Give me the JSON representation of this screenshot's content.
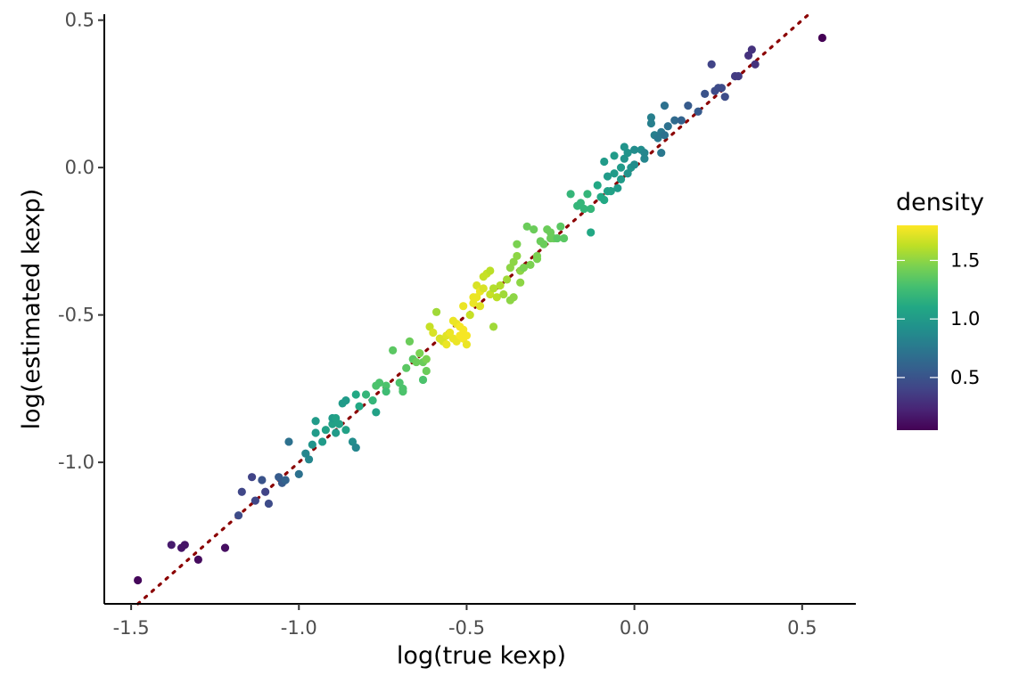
{
  "chart_data": {
    "type": "scatter",
    "title": "",
    "xlabel": "log(true kexp)",
    "ylabel": "log(estimated kexp)",
    "xlim": [
      -1.58,
      0.66
    ],
    "ylim": [
      -1.48,
      0.52
    ],
    "xticks": [
      -1.5,
      -1.0,
      -0.5,
      0.0,
      0.5
    ],
    "xtick_labels": [
      "-1.5",
      "-1.0",
      "-0.5",
      "0.0",
      "0.5"
    ],
    "yticks": [
      -1.0,
      -0.5,
      0.0,
      0.5
    ],
    "ytick_labels": [
      "-1.0",
      "-0.5",
      "0.0",
      "0.5"
    ],
    "grid": false,
    "reference_line": {
      "type": "identity",
      "style": "dotted",
      "color": "#8b0000"
    },
    "legend": {
      "title": "density",
      "type": "colorbar",
      "placement": "right",
      "range": [
        0.05,
        1.8
      ],
      "ticks": [
        0.5,
        1.0,
        1.5
      ],
      "tick_labels": [
        "0.5",
        "1.0",
        "1.5"
      ],
      "colormap": "viridis"
    },
    "points": [
      [
        -1.48,
        -1.4,
        0.08
      ],
      [
        -1.38,
        -1.28,
        0.18
      ],
      [
        -1.35,
        -1.29,
        0.15
      ],
      [
        -1.34,
        -1.28,
        0.15
      ],
      [
        -1.3,
        -1.33,
        0.1
      ],
      [
        -1.22,
        -1.29,
        0.12
      ],
      [
        -1.18,
        -1.18,
        0.45
      ],
      [
        -1.17,
        -1.1,
        0.42
      ],
      [
        -1.14,
        -1.05,
        0.4
      ],
      [
        -1.13,
        -1.13,
        0.42
      ],
      [
        -1.11,
        -1.06,
        0.5
      ],
      [
        -1.1,
        -1.1,
        0.4
      ],
      [
        -1.09,
        -1.14,
        0.45
      ],
      [
        -1.06,
        -1.05,
        0.55
      ],
      [
        -1.05,
        -1.07,
        0.55
      ],
      [
        -1.04,
        -1.06,
        0.6
      ],
      [
        -1.03,
        -0.93,
        0.7
      ],
      [
        -1.0,
        -1.04,
        0.7
      ],
      [
        -0.98,
        -0.97,
        0.85
      ],
      [
        -0.97,
        -0.99,
        0.85
      ],
      [
        -0.96,
        -0.94,
        0.95
      ],
      [
        -0.95,
        -0.9,
        1.0
      ],
      [
        -0.95,
        -0.86,
        1.0
      ],
      [
        -0.93,
        -0.93,
        1.0
      ],
      [
        -0.92,
        -0.89,
        1.05
      ],
      [
        -0.9,
        -0.87,
        1.05
      ],
      [
        -0.9,
        -0.85,
        1.0
      ],
      [
        -0.89,
        -0.9,
        1.0
      ],
      [
        -0.89,
        -0.85,
        1.05
      ],
      [
        -0.88,
        -0.87,
        1.05
      ],
      [
        -0.87,
        -0.8,
        1.0
      ],
      [
        -0.86,
        -0.89,
        1.05
      ],
      [
        -0.86,
        -0.79,
        1.0
      ],
      [
        -0.84,
        -0.93,
        0.9
      ],
      [
        -0.83,
        -0.95,
        0.85
      ],
      [
        -0.83,
        -0.77,
        1.1
      ],
      [
        -0.82,
        -0.81,
        1.1
      ],
      [
        -0.8,
        -0.77,
        1.2
      ],
      [
        -0.78,
        -0.79,
        1.2
      ],
      [
        -0.77,
        -0.74,
        1.3
      ],
      [
        -0.77,
        -0.83,
        1.05
      ],
      [
        -0.76,
        -0.73,
        1.3
      ],
      [
        -0.74,
        -0.74,
        1.3
      ],
      [
        -0.74,
        -0.76,
        1.25
      ],
      [
        -0.72,
        -0.62,
        1.35
      ],
      [
        -0.7,
        -0.73,
        1.3
      ],
      [
        -0.69,
        -0.76,
        1.3
      ],
      [
        -0.69,
        -0.75,
        1.3
      ],
      [
        -0.68,
        -0.68,
        1.35
      ],
      [
        -0.67,
        -0.59,
        1.4
      ],
      [
        -0.66,
        -0.65,
        1.35
      ],
      [
        -0.65,
        -0.66,
        1.4
      ],
      [
        -0.64,
        -0.63,
        1.45
      ],
      [
        -0.63,
        -0.72,
        1.3
      ],
      [
        -0.63,
        -0.66,
        1.4
      ],
      [
        -0.62,
        -0.69,
        1.4
      ],
      [
        -0.62,
        -0.65,
        1.45
      ],
      [
        -0.61,
        -0.54,
        1.65
      ],
      [
        -0.6,
        -0.56,
        1.7
      ],
      [
        -0.59,
        -0.49,
        1.55
      ],
      [
        -0.58,
        -0.58,
        1.7
      ],
      [
        -0.57,
        -0.59,
        1.7
      ],
      [
        -0.56,
        -0.57,
        1.72
      ],
      [
        -0.56,
        -0.6,
        1.75
      ],
      [
        -0.55,
        -0.56,
        1.75
      ],
      [
        -0.54,
        -0.58,
        1.75
      ],
      [
        -0.54,
        -0.52,
        1.75
      ],
      [
        -0.53,
        -0.53,
        1.75
      ],
      [
        -0.53,
        -0.59,
        1.75
      ],
      [
        -0.52,
        -0.57,
        1.78
      ],
      [
        -0.52,
        -0.54,
        1.78
      ],
      [
        -0.51,
        -0.47,
        1.75
      ],
      [
        -0.51,
        -0.55,
        1.78
      ],
      [
        -0.51,
        -0.58,
        1.78
      ],
      [
        -0.5,
        -0.6,
        1.75
      ],
      [
        -0.5,
        -0.57,
        1.78
      ],
      [
        -0.49,
        -0.5,
        1.65
      ],
      [
        -0.48,
        -0.44,
        1.75
      ],
      [
        -0.48,
        -0.46,
        1.75
      ],
      [
        -0.47,
        -0.44,
        1.75
      ],
      [
        -0.47,
        -0.4,
        1.7
      ],
      [
        -0.46,
        -0.42,
        1.75
      ],
      [
        -0.46,
        -0.47,
        1.72
      ],
      [
        -0.45,
        -0.41,
        1.7
      ],
      [
        -0.45,
        -0.37,
        1.65
      ],
      [
        -0.44,
        -0.36,
        1.65
      ],
      [
        -0.43,
        -0.35,
        1.62
      ],
      [
        -0.43,
        -0.43,
        1.65
      ],
      [
        -0.42,
        -0.41,
        1.6
      ],
      [
        -0.42,
        -0.54,
        1.55
      ],
      [
        -0.41,
        -0.44,
        1.62
      ],
      [
        -0.4,
        -0.4,
        1.6
      ],
      [
        -0.39,
        -0.43,
        1.55
      ],
      [
        -0.38,
        -0.38,
        1.55
      ],
      [
        -0.37,
        -0.34,
        1.5
      ],
      [
        -0.37,
        -0.45,
        1.5
      ],
      [
        -0.36,
        -0.32,
        1.5
      ],
      [
        -0.36,
        -0.44,
        1.5
      ],
      [
        -0.35,
        -0.26,
        1.45
      ],
      [
        -0.35,
        -0.3,
        1.5
      ],
      [
        -0.34,
        -0.39,
        1.5
      ],
      [
        -0.34,
        -0.35,
        1.5
      ],
      [
        -0.33,
        -0.34,
        1.45
      ],
      [
        -0.32,
        -0.2,
        1.4
      ],
      [
        -0.31,
        -0.33,
        1.45
      ],
      [
        -0.3,
        -0.21,
        1.4
      ],
      [
        -0.29,
        -0.3,
        1.45
      ],
      [
        -0.29,
        -0.31,
        1.45
      ],
      [
        -0.28,
        -0.25,
        1.4
      ],
      [
        -0.27,
        -0.26,
        1.4
      ],
      [
        -0.26,
        -0.21,
        1.4
      ],
      [
        -0.25,
        -0.22,
        1.4
      ],
      [
        -0.25,
        -0.24,
        1.4
      ],
      [
        -0.24,
        -0.24,
        1.4
      ],
      [
        -0.23,
        -0.24,
        1.35
      ],
      [
        -0.22,
        -0.2,
        1.35
      ],
      [
        -0.21,
        -0.24,
        1.35
      ],
      [
        -0.19,
        -0.09,
        1.2
      ],
      [
        -0.17,
        -0.13,
        1.2
      ],
      [
        -0.16,
        -0.12,
        1.2
      ],
      [
        -0.15,
        -0.14,
        1.2
      ],
      [
        -0.14,
        -0.09,
        1.2
      ],
      [
        -0.13,
        -0.14,
        1.2
      ],
      [
        -0.13,
        -0.22,
        1.1
      ],
      [
        -0.11,
        -0.06,
        1.1
      ],
      [
        -0.1,
        -0.1,
        1.1
      ],
      [
        -0.09,
        -0.11,
        1.1
      ],
      [
        -0.09,
        0.02,
        1.0
      ],
      [
        -0.08,
        -0.08,
        1.05
      ],
      [
        -0.08,
        -0.03,
        1.0
      ],
      [
        -0.07,
        -0.08,
        1.05
      ],
      [
        -0.06,
        0.04,
        1.0
      ],
      [
        -0.06,
        -0.02,
        1.0
      ],
      [
        -0.05,
        -0.07,
        1.0
      ],
      [
        -0.04,
        -0.04,
        1.0
      ],
      [
        -0.04,
        0.0,
        1.0
      ],
      [
        -0.03,
        0.03,
        0.95
      ],
      [
        -0.03,
        0.07,
        0.95
      ],
      [
        -0.02,
        0.05,
        0.95
      ],
      [
        -0.02,
        -0.02,
        0.95
      ],
      [
        -0.01,
        0.0,
        0.95
      ],
      [
        0.0,
        0.01,
        0.9
      ],
      [
        0.0,
        0.06,
        0.9
      ],
      [
        0.02,
        0.06,
        0.9
      ],
      [
        0.03,
        0.03,
        0.85
      ],
      [
        0.03,
        0.05,
        0.85
      ],
      [
        0.05,
        0.17,
        0.8
      ],
      [
        0.05,
        0.15,
        0.8
      ],
      [
        0.06,
        0.11,
        0.8
      ],
      [
        0.07,
        0.1,
        0.75
      ],
      [
        0.08,
        0.12,
        0.75
      ],
      [
        0.08,
        0.05,
        0.75
      ],
      [
        0.09,
        0.11,
        0.7
      ],
      [
        0.09,
        0.21,
        0.7
      ],
      [
        0.1,
        0.14,
        0.7
      ],
      [
        0.12,
        0.16,
        0.65
      ],
      [
        0.14,
        0.16,
        0.6
      ],
      [
        0.16,
        0.21,
        0.55
      ],
      [
        0.19,
        0.19,
        0.55
      ],
      [
        0.21,
        0.25,
        0.5
      ],
      [
        0.23,
        0.35,
        0.4
      ],
      [
        0.24,
        0.26,
        0.45
      ],
      [
        0.25,
        0.27,
        0.45
      ],
      [
        0.26,
        0.27,
        0.45
      ],
      [
        0.27,
        0.24,
        0.45
      ],
      [
        0.3,
        0.31,
        0.35
      ],
      [
        0.31,
        0.31,
        0.35
      ],
      [
        0.34,
        0.38,
        0.3
      ],
      [
        0.35,
        0.4,
        0.3
      ],
      [
        0.36,
        0.35,
        0.3
      ],
      [
        0.56,
        0.44,
        0.05
      ]
    ]
  }
}
